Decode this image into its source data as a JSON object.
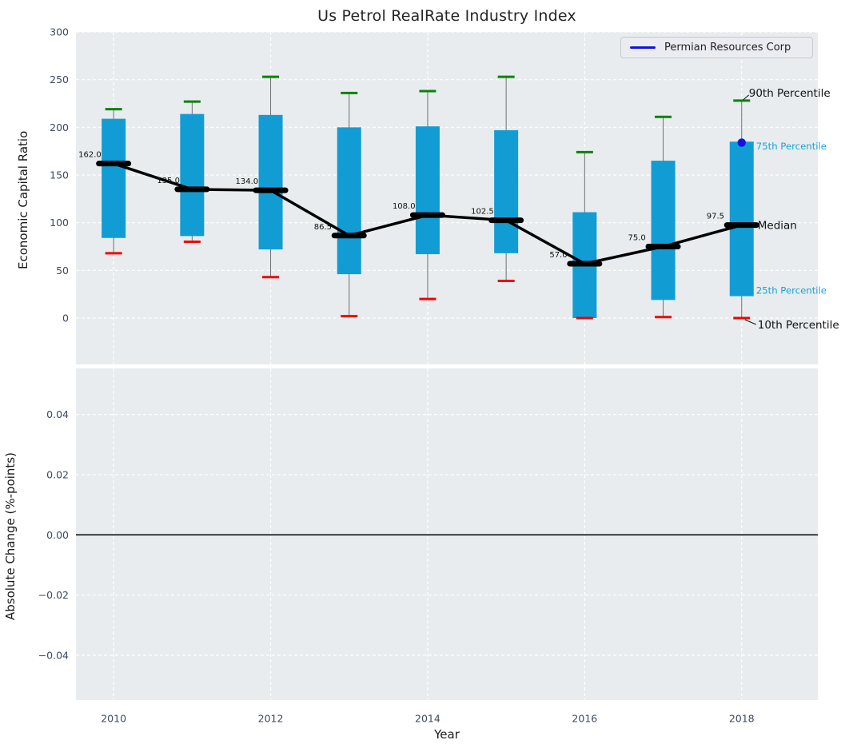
{
  "legend": {
    "label": "Permian Resources Corp"
  },
  "colors": {
    "bar": "#119dd3",
    "p90_cap": "#078307",
    "p10_cap": "#f40000",
    "median": "#000000",
    "company": "#1212e0",
    "annotation_cyan": "#1ba3d7",
    "annotation_dark": "#111111",
    "panel_bg": "#e8ecee",
    "grid": "#ffffff",
    "tick_text": "#3d4a5f",
    "whisker": "#707070",
    "zero_line": "#000000"
  },
  "chart_data": {
    "type": "boxplot",
    "title": "Us Petrol RealRate Industry Index",
    "xlabel": "Year",
    "x": [
      2010,
      2011,
      2012,
      2013,
      2014,
      2015,
      2016,
      2017,
      2018
    ],
    "xlim": [
      2009.52,
      2018.97
    ],
    "xticks": [
      {
        "label": "2010",
        "value": 2010
      },
      {
        "label": "2012",
        "value": 2012
      },
      {
        "label": "2014",
        "value": 2014
      },
      {
        "label": "2016",
        "value": 2016
      },
      {
        "label": "2018",
        "value": 2018
      }
    ],
    "top_axis": {
      "ylabel": "Economic Capital Ratio",
      "ylim": [
        -48.6,
        300
      ],
      "grid": true,
      "yticks": [
        {
          "label": "300",
          "value": 300
        },
        {
          "label": "250",
          "value": 250
        },
        {
          "label": "200",
          "value": 200
        },
        {
          "label": "150",
          "value": 150
        },
        {
          "label": "100",
          "value": 100
        },
        {
          "label": "50",
          "value": 50
        },
        {
          "label": "0",
          "value": 0
        }
      ]
    },
    "bottom_axis": {
      "ylabel": "Absolute Change (%-points)",
      "ylim": [
        -0.0549,
        0.0553
      ],
      "grid": true,
      "zero_line": 0.0,
      "yticks": [
        {
          "label": "0.04",
          "value": 0.04
        },
        {
          "label": "0.02",
          "value": 0.02
        },
        {
          "label": "0.00",
          "value": 0.0
        },
        {
          "label": "−0.02",
          "value": -0.02
        },
        {
          "label": "−0.04",
          "value": -0.04
        }
      ]
    },
    "series": [
      {
        "key": "p90",
        "name": "90th Percentile",
        "values": [
          219,
          227,
          253,
          236,
          238,
          253,
          174,
          211,
          228
        ]
      },
      {
        "key": "p75",
        "name": "75th Percentile",
        "values": [
          209,
          214,
          213,
          200,
          201,
          197,
          111,
          165,
          185
        ]
      },
      {
        "key": "median",
        "name": "Median",
        "values": [
          162.0,
          135.0,
          134.0,
          86.5,
          108.0,
          102.5,
          57.0,
          75.0,
          97.5
        ]
      },
      {
        "key": "p25",
        "name": "25th Percentile",
        "values": [
          84,
          86,
          72,
          46,
          67,
          68,
          0,
          19,
          23
        ]
      },
      {
        "key": "p10",
        "name": "10th Percentile",
        "values": [
          68,
          80,
          43,
          2,
          20,
          39,
          0,
          1,
          0
        ]
      }
    ],
    "median_labels": [
      "162.0",
      "135.0",
      "134.0",
      "86.5",
      "108.0",
      "102.5",
      "57.0",
      "75.0",
      "97.5"
    ],
    "company_point": {
      "name": "Permian Resources Corp",
      "x": 2018,
      "y": 184
    },
    "annotations": [
      {
        "text": "90th Percentile",
        "stat": "p90",
        "size": "large",
        "color_key": "annotation_dark"
      },
      {
        "text": "75th Percentile",
        "stat": "p75",
        "size": "small",
        "color_key": "annotation_cyan"
      },
      {
        "text": "Median",
        "stat": "median",
        "size": "large",
        "color_key": "annotation_dark"
      },
      {
        "text": "25th Percentile",
        "stat": "p25",
        "size": "small",
        "color_key": "annotation_cyan"
      },
      {
        "text": "10th Percentile",
        "stat": "p10",
        "size": "large",
        "color_key": "annotation_dark"
      }
    ]
  }
}
